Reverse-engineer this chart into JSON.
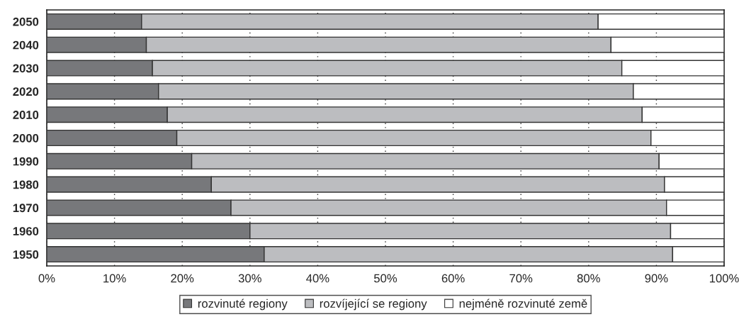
{
  "chart_data": {
    "type": "bar",
    "orientation": "horizontal",
    "stacked": true,
    "categories": [
      "2050",
      "2040",
      "2030",
      "2020",
      "2010",
      "2000",
      "1990",
      "1980",
      "1970",
      "1960",
      "1950"
    ],
    "series": [
      {
        "name": "rozvinuté regiony",
        "color": "#77787b",
        "values": [
          14.0,
          14.7,
          15.6,
          16.5,
          17.8,
          19.2,
          21.4,
          24.3,
          27.2,
          30.0,
          32.1
        ]
      },
      {
        "name": "rozvíjející se regiony",
        "color": "#bcbdc0",
        "values": [
          67.4,
          68.6,
          69.3,
          70.1,
          70.1,
          70.0,
          69.0,
          66.9,
          64.3,
          62.1,
          60.3
        ]
      },
      {
        "name": "nejméně rozvinuté země",
        "color": "#ffffff",
        "values": [
          18.6,
          16.7,
          15.1,
          13.4,
          12.1,
          10.8,
          9.6,
          8.8,
          8.5,
          7.9,
          7.6
        ]
      }
    ],
    "xlim": [
      0,
      100
    ],
    "xticks": [
      {
        "value": 0,
        "label": "0%"
      },
      {
        "value": 10,
        "label": "10%"
      },
      {
        "value": 20,
        "label": "20%"
      },
      {
        "value": 30,
        "label": "30%"
      },
      {
        "value": 40,
        "label": "40%"
      },
      {
        "value": 50,
        "label": "50%"
      },
      {
        "value": 60,
        "label": "60%"
      },
      {
        "value": 70,
        "label": "70%"
      },
      {
        "value": 80,
        "label": "80%"
      },
      {
        "value": 90,
        "label": "90%"
      },
      {
        "value": 100,
        "label": "100%"
      }
    ],
    "grid": "x",
    "legend": "bottom"
  }
}
